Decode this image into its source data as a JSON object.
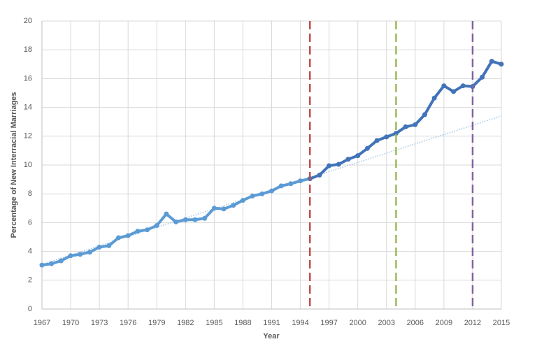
{
  "chart_data": {
    "type": "line",
    "x_label": "Year",
    "y_label": "Percentage of New Interracial Marriages",
    "x": [
      1967,
      1968,
      1969,
      1970,
      1971,
      1972,
      1973,
      1974,
      1975,
      1976,
      1977,
      1978,
      1979,
      1980,
      1981,
      1982,
      1983,
      1984,
      1985,
      1986,
      1987,
      1988,
      1989,
      1990,
      1991,
      1992,
      1993,
      1994,
      1995,
      1996,
      1997,
      1998,
      1999,
      2000,
      2001,
      2002,
      2003,
      2004,
      2005,
      2006,
      2007,
      2008,
      2009,
      2010,
      2011,
      2012,
      2013,
      2014,
      2015
    ],
    "series": [
      {
        "color": "#5b9bd5",
        "values": [
          3.05,
          3.15,
          3.35,
          3.7,
          3.8,
          3.95,
          4.3,
          4.4,
          4.95,
          5.1,
          5.4,
          5.5,
          5.8,
          6.6,
          6.05,
          6.2,
          6.2,
          6.3,
          7.0,
          6.95,
          7.2,
          7.55,
          7.85,
          8.0,
          8.2,
          8.55,
          8.7,
          8.9,
          9.05,
          null,
          null,
          null,
          null,
          null,
          null,
          null,
          null,
          null,
          null,
          null,
          null,
          null,
          null,
          null,
          null,
          null,
          null,
          null,
          null
        ]
      },
      {
        "color": "#4173b8",
        "values": [
          null,
          null,
          null,
          null,
          null,
          null,
          null,
          null,
          null,
          null,
          null,
          null,
          null,
          null,
          null,
          null,
          null,
          null,
          null,
          null,
          null,
          null,
          null,
          null,
          null,
          null,
          null,
          null,
          9.05,
          9.3,
          9.95,
          10.05,
          10.4,
          10.65,
          11.15,
          11.7,
          11.95,
          12.2,
          12.65,
          12.8,
          13.5,
          14.65,
          15.5,
          15.1,
          15.5,
          15.45,
          16.1,
          17.2,
          17.0
        ]
      }
    ],
    "trendline": {
      "color": "#9dc3e6",
      "x": [
        1967,
        2015
      ],
      "values": [
        3.1,
        13.4
      ]
    },
    "vlines": [
      {
        "x": 1995,
        "color": "#c0504d"
      },
      {
        "x": 2004,
        "color": "#9bbb59"
      },
      {
        "x": 2012,
        "color": "#8064a2"
      }
    ],
    "xlim": [
      1967,
      2015
    ],
    "xticks": [
      1967,
      1970,
      1973,
      1976,
      1979,
      1982,
      1985,
      1988,
      1991,
      1994,
      1997,
      2000,
      2003,
      2006,
      2009,
      2012,
      2015
    ],
    "ylim": [
      0,
      20
    ],
    "yticks": [
      0,
      2,
      4,
      6,
      8,
      10,
      12,
      14,
      16,
      18,
      20
    ],
    "grid": true
  }
}
